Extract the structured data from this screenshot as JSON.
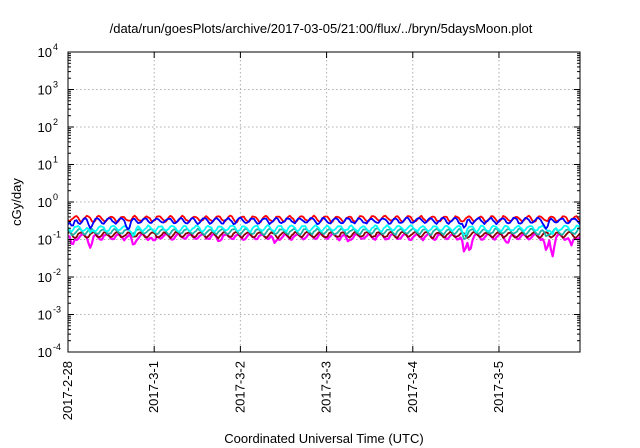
{
  "chart_data": {
    "type": "line",
    "title": "/data/run/goesPlots/archive/2017-03-05/21:00/flux/../bryn/5daysMoon.plot",
    "xlabel": "Coordinated Universal Time (UTC)",
    "ylabel": "cGy/day",
    "yscale": "log",
    "ylim": [
      0.0001,
      10000
    ],
    "y_ticks": [
      {
        "value": 0.0001,
        "label": "10",
        "exp": "-4"
      },
      {
        "value": 0.001,
        "label": "10",
        "exp": "-3"
      },
      {
        "value": 0.01,
        "label": "10",
        "exp": "-2"
      },
      {
        "value": 0.1,
        "label": "10",
        "exp": "-1"
      },
      {
        "value": 1,
        "label": "10",
        "exp": "0"
      },
      {
        "value": 10,
        "label": "10",
        "exp": "1"
      },
      {
        "value": 100,
        "label": "10",
        "exp": "2"
      },
      {
        "value": 1000,
        "label": "10",
        "exp": "3"
      },
      {
        "value": 10000,
        "label": "10",
        "exp": "4"
      }
    ],
    "x_ticks": [
      "2017-2-28",
      "2017-3-1",
      "2017-3-2",
      "2017-3-3",
      "2017-3-4",
      "2017-3-5"
    ],
    "x_range_days": [
      0,
      5.94
    ],
    "grid": true,
    "series": [
      {
        "color": "#ff00ff",
        "base": 0.12,
        "dips": [
          [
            0.05,
            0.07
          ],
          [
            0.26,
            0.06
          ],
          [
            0.76,
            0.07
          ],
          [
            1.0,
            0.09
          ],
          [
            1.75,
            0.09
          ],
          [
            2.4,
            0.08
          ],
          [
            3.25,
            0.09
          ],
          [
            4.6,
            0.045
          ],
          [
            4.66,
            0.05
          ],
          [
            5.1,
            0.08
          ],
          [
            5.55,
            0.05
          ],
          [
            5.62,
            0.035
          ],
          [
            5.84,
            0.07
          ]
        ]
      },
      {
        "color": "#8b0000",
        "base": 0.135,
        "dips": []
      },
      {
        "color": "#20b2aa",
        "base": 0.165,
        "dips": [
          [
            0.05,
            0.13
          ],
          [
            4.6,
            0.1
          ],
          [
            5.55,
            0.12
          ]
        ]
      },
      {
        "color": "#00ffff",
        "base": 0.2,
        "dips": [
          [
            0.26,
            0.15
          ],
          [
            0.76,
            0.12
          ],
          [
            4.6,
            0.13
          ],
          [
            5.62,
            0.14
          ]
        ]
      },
      {
        "color": "#ff0000",
        "base": 0.36,
        "dips": []
      },
      {
        "color": "#0000ff",
        "base": 0.32,
        "dips": [
          [
            0.05,
            0.22
          ],
          [
            0.26,
            0.2
          ],
          [
            0.7,
            0.18
          ],
          [
            4.6,
            0.2
          ],
          [
            5.55,
            0.19
          ]
        ]
      }
    ]
  }
}
